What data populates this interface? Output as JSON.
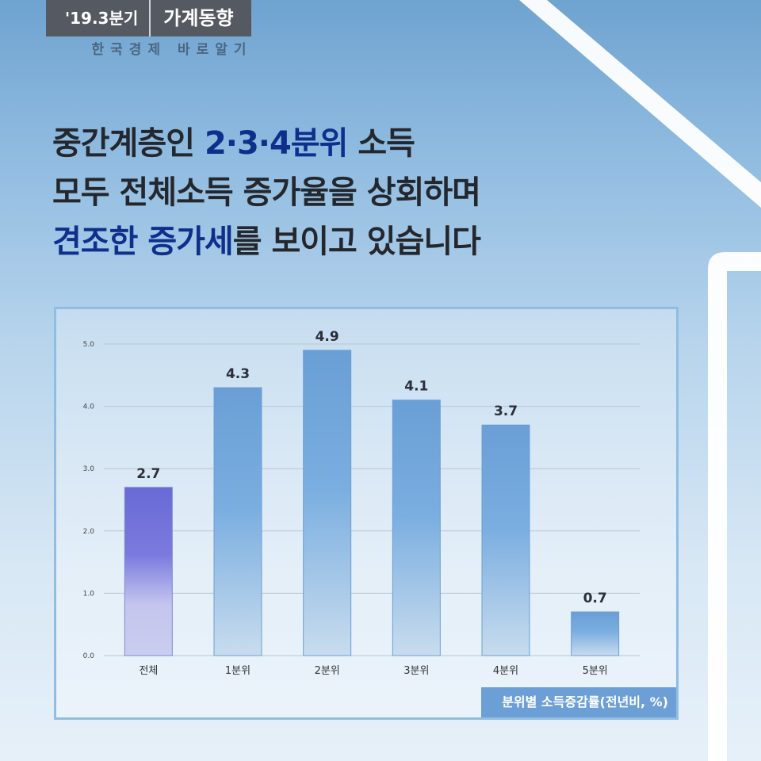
{
  "header": {
    "period": "'19.3분기",
    "title": "가계동향",
    "series_label": "한국경제 바로알기"
  },
  "headline": {
    "line1_a": "중간계층인 ",
    "line1_hl": "2·3·4분위",
    "line1_b": " 소득",
    "line2": "모두 전체소득 증가율을 상회하며",
    "line3_hl": "견조한 증가세",
    "line3_b": "를 보이고 있습니다"
  },
  "colors": {
    "bar_blue": "#6a9fd6",
    "bar_total": "#6a6ad6",
    "headline_highlight": "#0f2f8c",
    "note_bg": "#6b9fd6"
  },
  "chart_data": {
    "type": "bar",
    "categories": [
      "전체",
      "1분위",
      "2분위",
      "3분위",
      "4분위",
      "5분위"
    ],
    "values": [
      2.7,
      4.3,
      4.9,
      4.1,
      3.7,
      0.7
    ],
    "value_labels": [
      "2.7",
      "4.3",
      "4.9",
      "4.1",
      "3.7",
      "0.7"
    ],
    "y_ticks": [
      "0.0",
      "1.0",
      "2.0",
      "3.0",
      "4.0",
      "5.0"
    ],
    "ylim": [
      0,
      5
    ],
    "grid": true,
    "note": "분위별 소득증감률(전년비, %)"
  }
}
